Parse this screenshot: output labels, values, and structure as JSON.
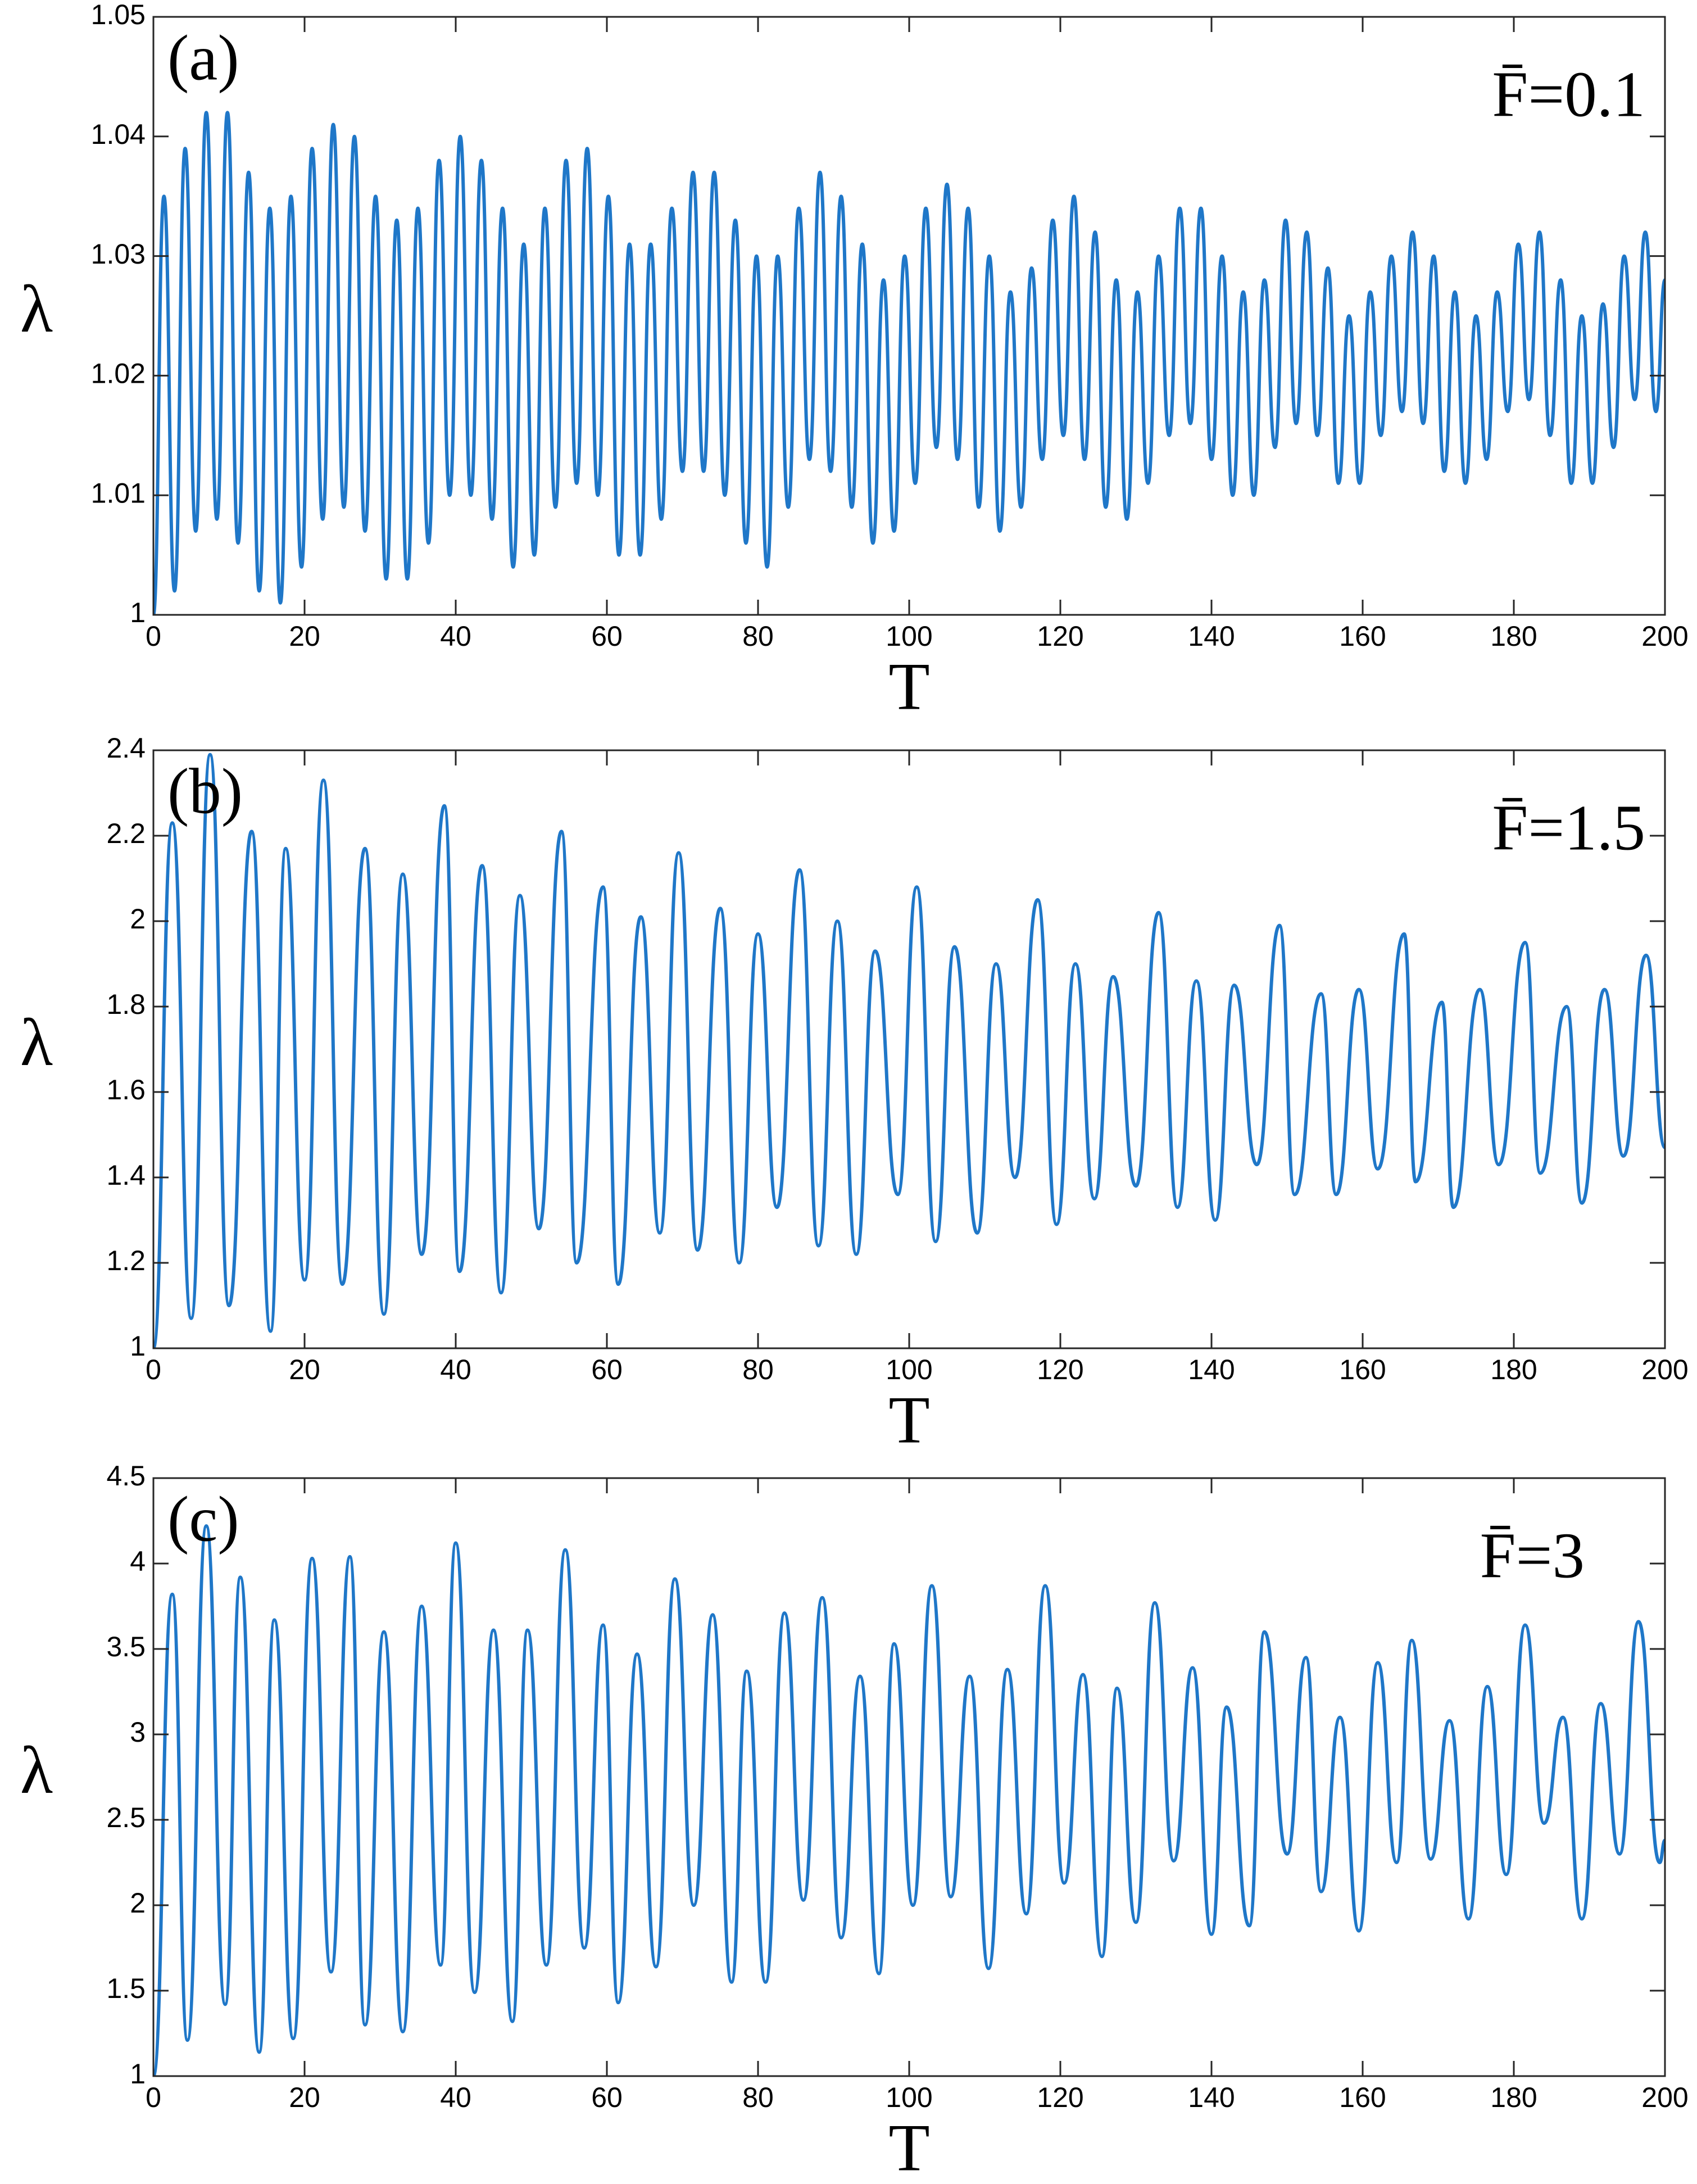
{
  "chart_data": [
    {
      "type": "line",
      "panel_label": "(a)",
      "annotation": "F̄=0.1",
      "x_label": "T",
      "y_label": "λ",
      "color": "#1f77c8",
      "xlim": [
        0,
        200
      ],
      "xticks": [
        0,
        20,
        40,
        60,
        80,
        100,
        120,
        140,
        160,
        180,
        200
      ],
      "ylim": [
        1,
        1.05
      ],
      "yticks": [
        1,
        1.01,
        1.02,
        1.03,
        1.04,
        1.05
      ],
      "x": [
        0,
        1.4,
        2.8,
        4.2,
        5.6,
        7,
        8.4,
        9.8,
        11.2,
        12.6,
        14,
        15.4,
        16.8,
        18.2,
        19.6,
        21,
        22.4,
        23.8,
        25.2,
        26.6,
        28,
        29.4,
        30.8,
        32.2,
        33.6,
        35,
        36.4,
        37.8,
        39.2,
        40.6,
        42,
        43.4,
        44.8,
        46.2,
        47.6,
        49,
        50.4,
        51.8,
        53.2,
        54.6,
        56,
        57.4,
        58.8,
        60.2,
        61.6,
        63,
        64.4,
        65.8,
        67.2,
        68.6,
        70,
        71.4,
        72.8,
        74.2,
        75.6,
        77,
        78.4,
        79.8,
        81.2,
        82.6,
        84,
        85.4,
        86.8,
        88.2,
        89.6,
        91,
        92.4,
        93.8,
        95.2,
        96.6,
        98,
        99.4,
        100.8,
        102.2,
        103.6,
        105,
        106.4,
        107.8,
        109.2,
        110.6,
        112,
        113.4,
        114.8,
        116.2,
        117.6,
        119,
        120.4,
        121.8,
        123.2,
        124.6,
        126,
        127.4,
        128.8,
        130.2,
        131.6,
        133,
        134.4,
        135.8,
        137.2,
        138.6,
        140,
        141.4,
        142.8,
        144.2,
        145.6,
        147,
        148.4,
        149.8,
        151.2,
        152.6,
        154,
        155.4,
        156.8,
        158.2,
        159.6,
        161,
        162.4,
        163.8,
        165.2,
        166.6,
        168,
        169.4,
        170.8,
        172.2,
        173.6,
        175,
        176.4,
        177.8,
        179.2,
        180.6,
        182,
        183.4,
        184.8,
        186.2,
        187.6,
        189,
        190.4,
        191.8,
        193.2,
        194.6,
        196,
        197.4,
        198.8,
        200
      ],
      "values": [
        1.0,
        1.035,
        1.002,
        1.039,
        1.007,
        1.042,
        1.008,
        1.042,
        1.006,
        1.037,
        1.002,
        1.034,
        1.001,
        1.035,
        1.004,
        1.039,
        1.008,
        1.041,
        1.009,
        1.04,
        1.007,
        1.035,
        1.003,
        1.033,
        1.003,
        1.034,
        1.006,
        1.038,
        1.01,
        1.04,
        1.01,
        1.038,
        1.008,
        1.034,
        1.004,
        1.031,
        1.005,
        1.034,
        1.009,
        1.038,
        1.011,
        1.039,
        1.01,
        1.035,
        1.005,
        1.031,
        1.005,
        1.031,
        1.008,
        1.034,
        1.012,
        1.037,
        1.012,
        1.037,
        1.01,
        1.033,
        1.006,
        1.03,
        1.004,
        1.03,
        1.009,
        1.034,
        1.013,
        1.037,
        1.012,
        1.035,
        1.009,
        1.031,
        1.006,
        1.028,
        1.007,
        1.03,
        1.011,
        1.034,
        1.014,
        1.036,
        1.013,
        1.034,
        1.009,
        1.03,
        1.007,
        1.027,
        1.009,
        1.029,
        1.013,
        1.033,
        1.015,
        1.035,
        1.013,
        1.032,
        1.009,
        1.028,
        1.008,
        1.027,
        1.011,
        1.03,
        1.015,
        1.034,
        1.016,
        1.034,
        1.013,
        1.03,
        1.01,
        1.027,
        1.01,
        1.028,
        1.014,
        1.033,
        1.016,
        1.032,
        1.015,
        1.029,
        1.011,
        1.025,
        1.011,
        1.027,
        1.015,
        1.03,
        1.017,
        1.032,
        1.016,
        1.03,
        1.012,
        1.027,
        1.011,
        1.025,
        1.013,
        1.027,
        1.017,
        1.031,
        1.018,
        1.032,
        1.015,
        1.028,
        1.011,
        1.025,
        1.011,
        1.026,
        1.014,
        1.03,
        1.018,
        1.032,
        1.017,
        1.028
      ]
    },
    {
      "type": "line",
      "panel_label": "(b)",
      "annotation": "F̄=1.5",
      "x_label": "T",
      "y_label": "λ",
      "color": "#1f77c8",
      "xlim": [
        0,
        200
      ],
      "xticks": [
        0,
        20,
        40,
        60,
        80,
        100,
        120,
        140,
        160,
        180,
        200
      ],
      "ylim": [
        1,
        2.4
      ],
      "yticks": [
        1,
        1.2,
        1.4,
        1.6,
        1.8,
        2,
        2.2,
        2.4
      ],
      "x": [
        0,
        2.5,
        5,
        7.5,
        10,
        13,
        15.5,
        17.5,
        20,
        22.5,
        25,
        28,
        30.5,
        33,
        35.5,
        38.5,
        40.5,
        43.5,
        46,
        48.5,
        51,
        54,
        56,
        59.5,
        61.5,
        64.5,
        67,
        69.5,
        72,
        75,
        77.5,
        80,
        82.5,
        85.5,
        88,
        90.5,
        93,
        95.5,
        98.5,
        101,
        103.5,
        106,
        109,
        111.5,
        114,
        117,
        119.5,
        122,
        124.5,
        127,
        130,
        133,
        135.5,
        138,
        140.5,
        143,
        146,
        149,
        151,
        154.5,
        156.5,
        159.5,
        162,
        165.5,
        167,
        170.5,
        172,
        175.5,
        178,
        181.5,
        183.5,
        187,
        189,
        192,
        194.5,
        197.5,
        200
      ],
      "values": [
        1.0,
        2.23,
        1.07,
        2.39,
        1.1,
        2.21,
        1.04,
        2.17,
        1.16,
        2.33,
        1.15,
        2.17,
        1.08,
        2.11,
        1.22,
        2.27,
        1.18,
        2.13,
        1.13,
        2.06,
        1.28,
        2.21,
        1.2,
        2.08,
        1.15,
        2.01,
        1.27,
        2.16,
        1.23,
        2.03,
        1.2,
        1.97,
        1.33,
        2.12,
        1.24,
        2.0,
        1.22,
        1.93,
        1.36,
        2.08,
        1.25,
        1.94,
        1.27,
        1.9,
        1.4,
        2.05,
        1.29,
        1.9,
        1.35,
        1.87,
        1.38,
        2.02,
        1.33,
        1.86,
        1.3,
        1.85,
        1.43,
        1.99,
        1.36,
        1.83,
        1.36,
        1.84,
        1.42,
        1.97,
        1.39,
        1.81,
        1.33,
        1.84,
        1.43,
        1.95,
        1.41,
        1.8,
        1.34,
        1.84,
        1.45,
        1.92,
        1.47
      ]
    },
    {
      "type": "line",
      "panel_label": "(c)",
      "annotation": "F̄=3",
      "x_label": "T",
      "y_label": "λ",
      "color": "#1f77c8",
      "xlim": [
        0,
        200
      ],
      "xticks": [
        0,
        20,
        40,
        60,
        80,
        100,
        120,
        140,
        160,
        180,
        200
      ],
      "ylim": [
        1,
        4.5
      ],
      "yticks": [
        1,
        1.5,
        2,
        2.5,
        3,
        3.5,
        4,
        4.5
      ],
      "x": [
        0,
        2.5,
        4.5,
        7,
        9.5,
        11.5,
        14,
        16,
        18.5,
        21,
        23.5,
        26,
        28,
        30.5,
        33,
        35.5,
        38,
        40,
        42.5,
        45,
        47.5,
        49.5,
        52,
        54.5,
        57,
        59.5,
        61.5,
        64,
        66.5,
        69,
        71.5,
        74,
        76.5,
        78.5,
        81,
        83.5,
        86,
        88.5,
        91,
        93.5,
        96,
        98,
        100.5,
        103,
        105.5,
        108,
        110.5,
        113,
        115.5,
        118,
        120.5,
        123,
        125.5,
        127.5,
        130,
        132.5,
        135,
        137.5,
        140,
        142,
        145,
        147,
        150,
        152.5,
        154.5,
        157,
        159.5,
        162,
        164.5,
        166.5,
        169,
        171.5,
        174,
        176.5,
        179,
        181.5,
        184,
        186.5,
        189,
        191.5,
        194,
        196.5,
        199.3,
        200
      ],
      "values": [
        1.0,
        3.82,
        1.21,
        4.22,
        1.42,
        3.92,
        1.14,
        3.67,
        1.22,
        4.03,
        1.61,
        4.04,
        1.3,
        3.6,
        1.26,
        3.75,
        1.65,
        4.12,
        1.49,
        3.61,
        1.32,
        3.61,
        1.65,
        4.08,
        1.75,
        3.64,
        1.43,
        3.47,
        1.64,
        3.91,
        2.0,
        3.7,
        1.55,
        3.37,
        1.55,
        3.71,
        2.03,
        3.8,
        1.81,
        3.34,
        1.6,
        3.53,
        2.0,
        3.87,
        2.05,
        3.34,
        1.63,
        3.38,
        1.95,
        3.87,
        2.13,
        3.35,
        1.7,
        3.27,
        1.9,
        3.77,
        2.26,
        3.39,
        1.83,
        3.16,
        1.88,
        3.6,
        2.3,
        3.45,
        2.08,
        3.1,
        1.85,
        3.42,
        2.25,
        3.55,
        2.27,
        3.08,
        1.92,
        3.28,
        2.18,
        3.64,
        2.48,
        3.1,
        1.92,
        3.18,
        2.3,
        3.66,
        2.25,
        2.38
      ]
    }
  ]
}
